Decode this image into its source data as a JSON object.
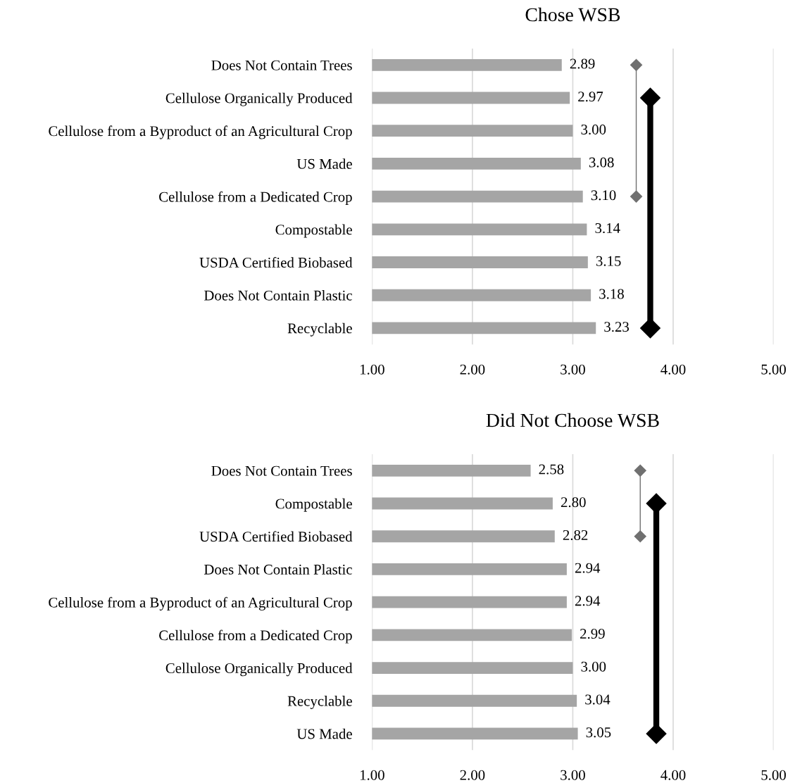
{
  "chart_data": [
    {
      "type": "bar",
      "orientation": "horizontal",
      "title": "Chose WSB",
      "categories": [
        "Does Not Contain Trees",
        "Cellulose Organically Produced",
        "Cellulose from a Byproduct of an Agricultural Crop",
        "US Made",
        "Cellulose from a Dedicated Crop",
        "Compostable",
        "USDA Certified Biobased",
        "Does Not Contain Plastic",
        "Recyclable"
      ],
      "values": [
        2.89,
        2.97,
        3.0,
        3.08,
        3.1,
        3.14,
        3.15,
        3.18,
        3.23
      ],
      "value_labels": [
        "2.89",
        "2.97",
        "3.00",
        "3.08",
        "3.10",
        "3.14",
        "3.15",
        "3.18",
        "3.23"
      ],
      "color": "#a5a5a5",
      "xlim": [
        1,
        5
      ],
      "xticks": [
        {
          "value": 1,
          "label": "1.00"
        },
        {
          "value": 2,
          "label": "2.00"
        },
        {
          "value": 3,
          "label": "3.00"
        },
        {
          "value": 4,
          "label": "4.00"
        },
        {
          "value": 5,
          "label": "5.00"
        }
      ],
      "grid": "x"
    },
    {
      "type": "bar",
      "orientation": "horizontal",
      "title": "Did Not Choose WSB",
      "categories": [
        "Does Not Contain Trees",
        "Compostable",
        "USDA Certified Biobased",
        "Does Not Contain Plastic",
        "Cellulose from a Byproduct of an Agricultural Crop",
        "Cellulose from a Dedicated Crop",
        "Cellulose Organically Produced",
        "Recyclable",
        "US Made"
      ],
      "values": [
        2.58,
        2.8,
        2.82,
        2.94,
        2.94,
        2.99,
        3.0,
        3.04,
        3.05
      ],
      "value_labels": [
        "2.58",
        "2.80",
        "2.82",
        "2.94",
        "2.94",
        "2.99",
        "3.00",
        "3.04",
        "3.05"
      ],
      "color": "#a5a5a5",
      "xlim": [
        1,
        5
      ],
      "xticks": [
        {
          "value": 1,
          "label": "1.00"
        },
        {
          "value": 2,
          "label": "2.00"
        },
        {
          "value": 3,
          "label": "3.00"
        },
        {
          "value": 4,
          "label": "4.00"
        },
        {
          "value": 5,
          "label": "5.00"
        }
      ],
      "grid": "x"
    }
  ]
}
